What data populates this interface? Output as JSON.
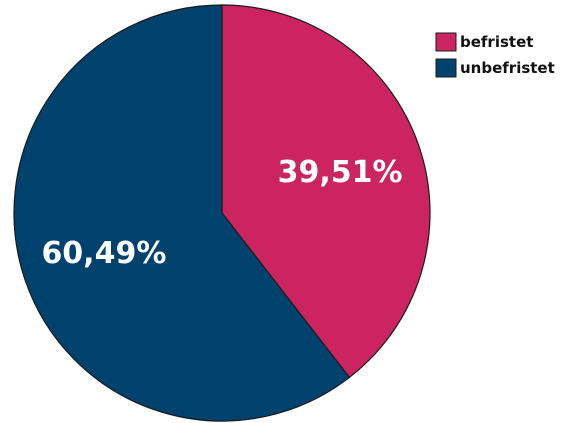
{
  "chart_data": {
    "type": "pie",
    "categories": [
      "befristet",
      "unbefristet"
    ],
    "values": [
      39.51,
      60.49
    ],
    "labels": [
      "39,51%",
      "60,49%"
    ],
    "colors": [
      "#cb2460",
      "#00426e"
    ],
    "start_angle_deg": 0,
    "direction": "clockwise",
    "legend_placement": "top-right",
    "legend": [
      "befristet",
      "unbefristet"
    ]
  }
}
